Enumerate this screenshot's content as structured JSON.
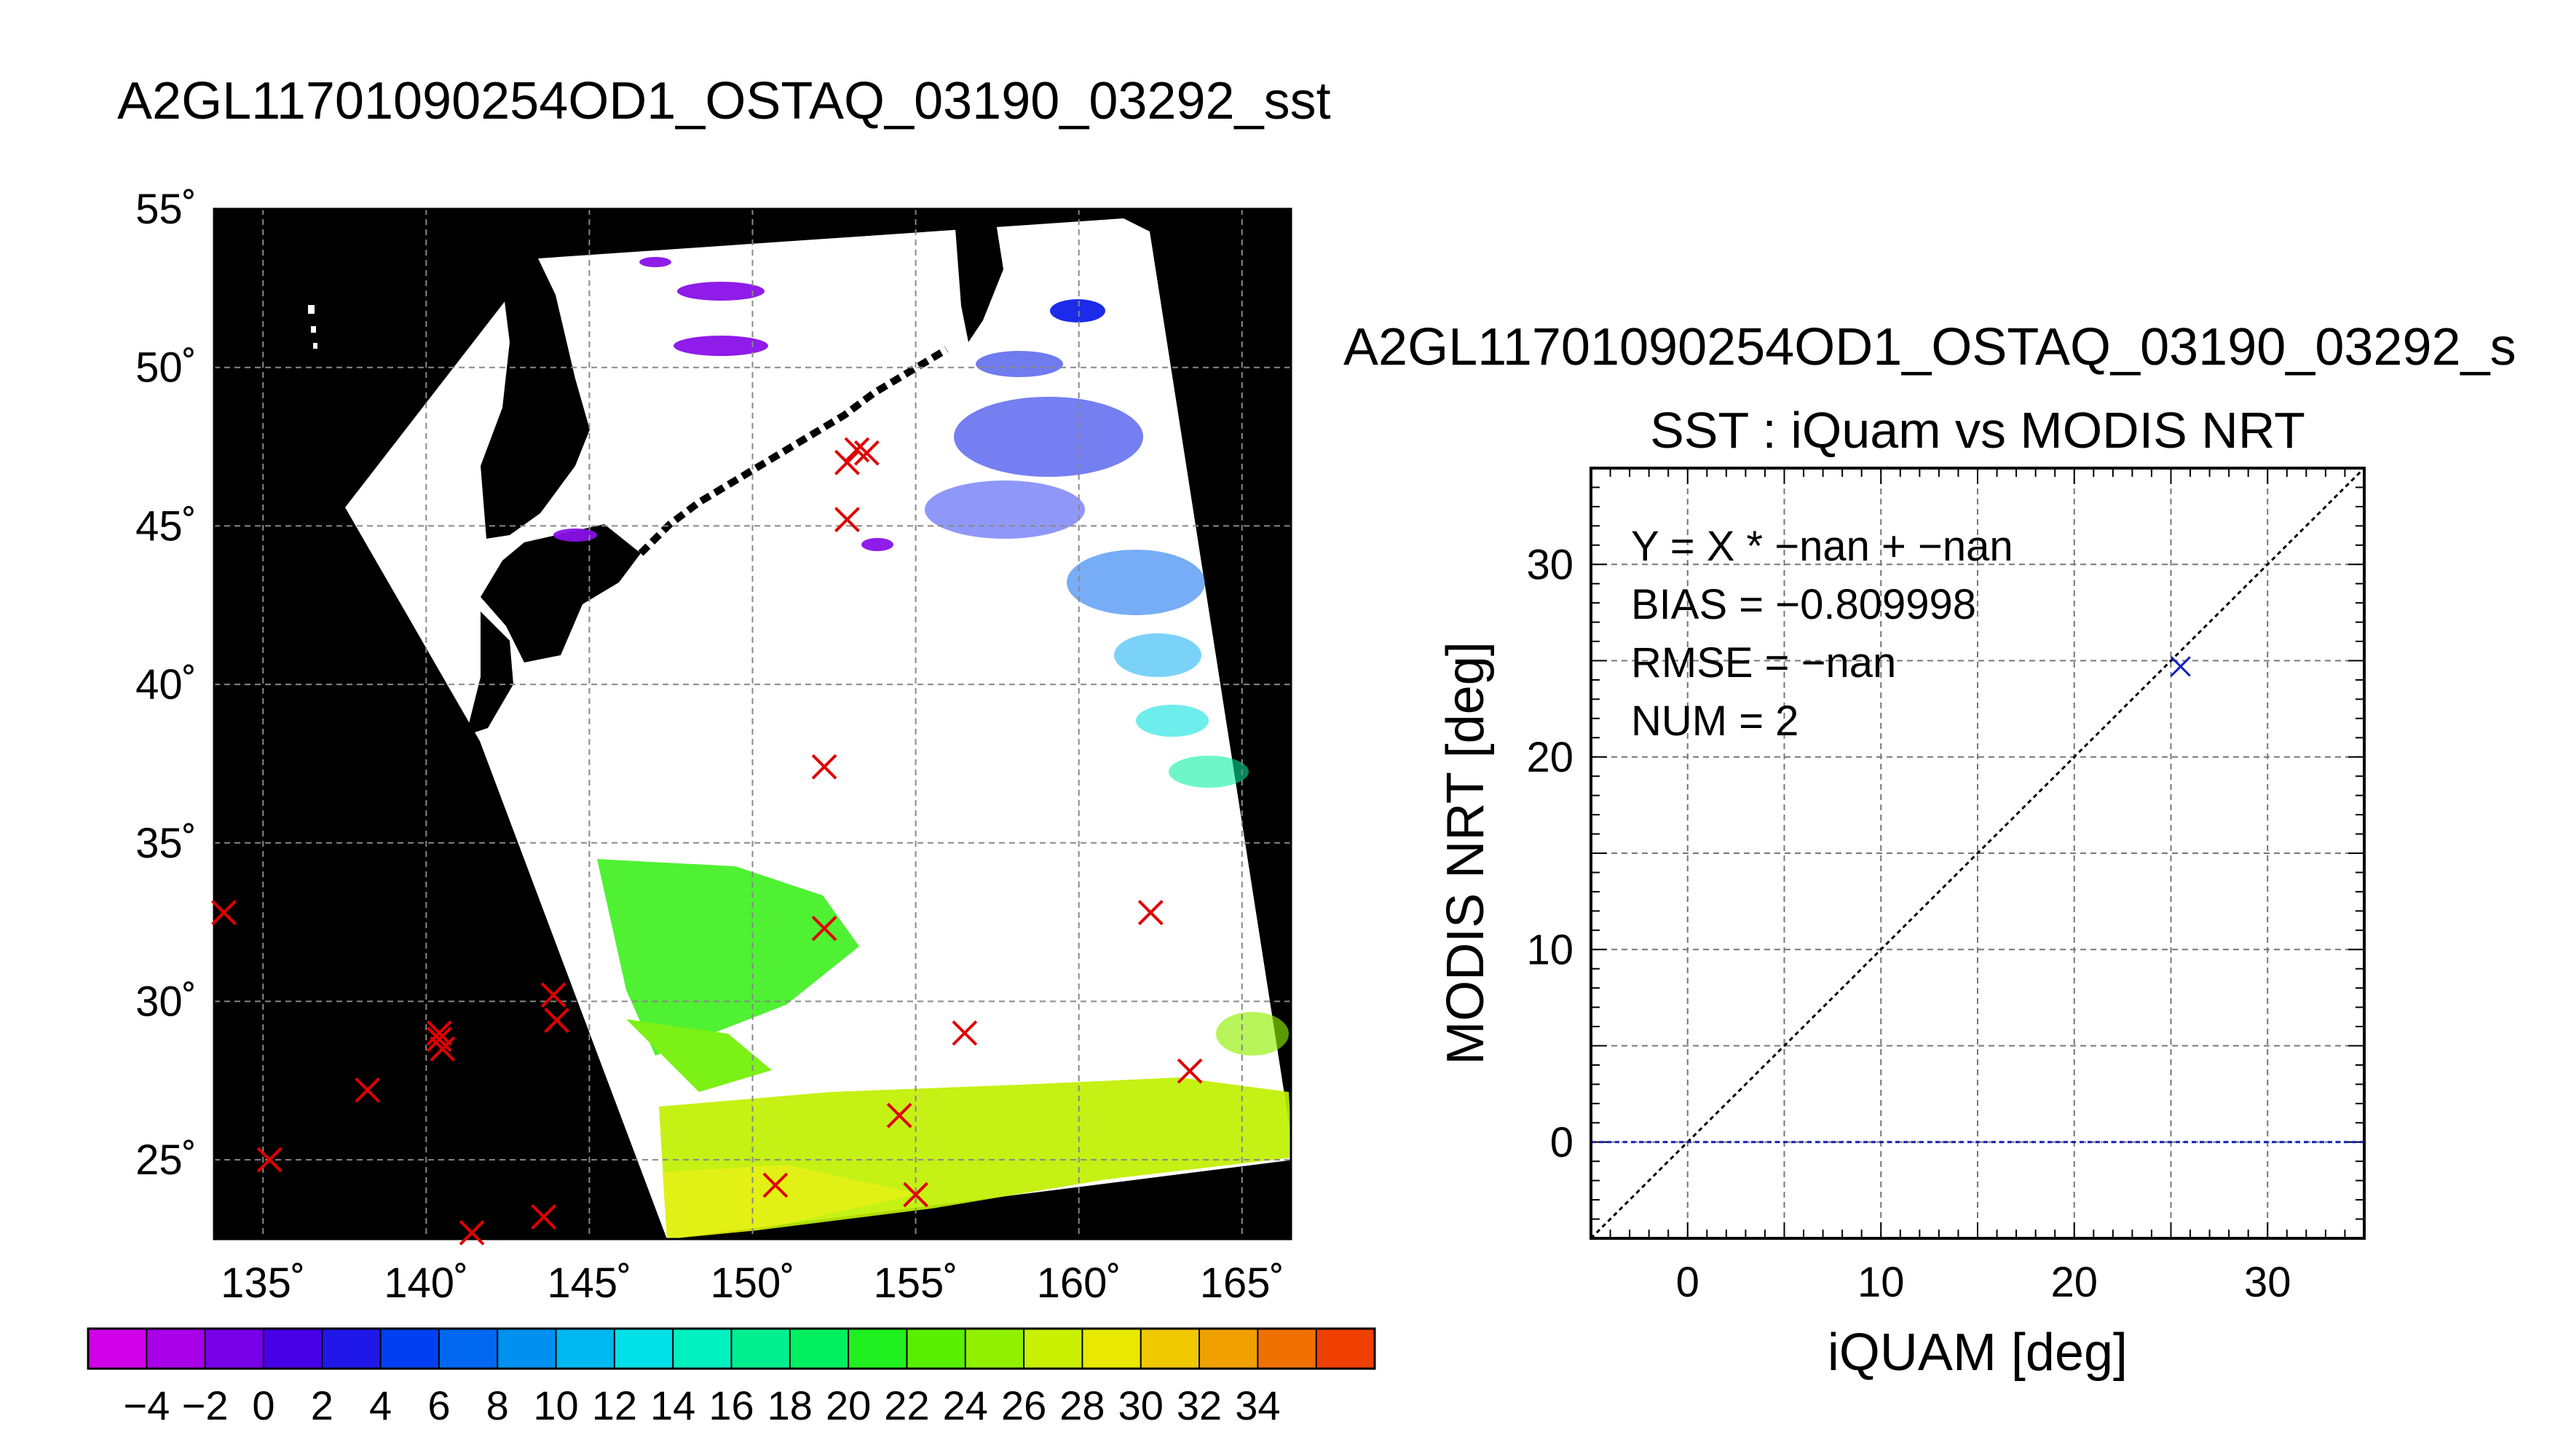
{
  "titles": {
    "main": "A2GL11701090254OD1_OSTAQ_03190_03292_sst",
    "scatter_filename": "A2GL11701090254OD1_OSTAQ_03190_03292_s"
  },
  "colors": {
    "match_marker": "#e00000",
    "scatter_marker": "#1020c0",
    "zero_line": "#1020c0",
    "land": "#000000",
    "cloud_mask": "#ffffff",
    "grid": "#888888"
  },
  "chart_data": [
    {
      "type": "map",
      "title": "A2GL11701090254OD1_OSTAQ_03190_03292_sst",
      "lon_range": [
        133.5,
        166.5
      ],
      "lat_range": [
        22.5,
        55
      ],
      "lon_ticks": [
        135,
        140,
        145,
        150,
        155,
        160,
        165
      ],
      "lat_ticks": [
        25,
        30,
        35,
        40,
        45,
        50,
        55
      ],
      "lon_tick_labels": [
        "135˚",
        "140˚",
        "145˚",
        "150˚",
        "155˚",
        "160˚",
        "165˚"
      ],
      "lat_tick_labels": [
        "25˚",
        "30˚",
        "35˚",
        "40˚",
        "45˚",
        "50˚",
        "55˚"
      ],
      "grid": true,
      "match_points": [
        {
          "lon": 133.8,
          "lat": 32.8
        },
        {
          "lon": 135.2,
          "lat": 25.0
        },
        {
          "lon": 138.2,
          "lat": 27.2
        },
        {
          "lon": 140.4,
          "lat": 29.0
        },
        {
          "lon": 140.4,
          "lat": 28.8
        },
        {
          "lon": 140.5,
          "lat": 28.5
        },
        {
          "lon": 141.4,
          "lat": 22.7
        },
        {
          "lon": 143.6,
          "lat": 23.2
        },
        {
          "lon": 143.9,
          "lat": 30.2
        },
        {
          "lon": 144.0,
          "lat": 29.4
        },
        {
          "lon": 150.7,
          "lat": 24.2
        },
        {
          "lon": 152.2,
          "lat": 37.4
        },
        {
          "lon": 152.2,
          "lat": 32.3
        },
        {
          "lon": 152.9,
          "lat": 45.2
        },
        {
          "lon": 152.9,
          "lat": 47.0
        },
        {
          "lon": 153.2,
          "lat": 47.4
        },
        {
          "lon": 153.5,
          "lat": 47.3
        },
        {
          "lon": 154.5,
          "lat": 26.4
        },
        {
          "lon": 155.0,
          "lat": 23.9
        },
        {
          "lon": 156.5,
          "lat": 29.0
        },
        {
          "lon": 162.2,
          "lat": 32.8
        },
        {
          "lon": 163.4,
          "lat": 27.8
        }
      ]
    },
    {
      "type": "colorbar",
      "tick_labels": [
        "−4",
        "−2",
        "0",
        "2",
        "4",
        "6",
        "8",
        "10",
        "12",
        "14",
        "16",
        "18",
        "20",
        "22",
        "24",
        "26",
        "28",
        "30",
        "32",
        "34"
      ],
      "colors": [
        "#d000e8",
        "#a800e8",
        "#7800e8",
        "#4800e8",
        "#2018e8",
        "#0040f0",
        "#0068f0",
        "#0090f0",
        "#00b8f0",
        "#00e0e8",
        "#00f0c0",
        "#00f090",
        "#00f060",
        "#20f020",
        "#58f000",
        "#90f000",
        "#c8f000",
        "#e8e800",
        "#f0c800",
        "#f0a000",
        "#f07000",
        "#f04000"
      ]
    },
    {
      "type": "scatter",
      "title": "SST : iQuam vs MODIS NRT",
      "xlabel": "iQUAM [deg]",
      "ylabel": "MODIS NRT [deg]",
      "xlim": [
        -5,
        35
      ],
      "ylim": [
        -5,
        35
      ],
      "xticks": [
        0,
        10,
        20,
        30
      ],
      "yticks": [
        0,
        10,
        20,
        30
      ],
      "grid": true,
      "stats": [
        "Y = X * −nan + −nan",
        "BIAS = −0.809998",
        "RMSE = −nan",
        "NUM = 2"
      ],
      "points": [
        {
          "x": 25.5,
          "y": 24.7
        }
      ],
      "reference_lines": [
        "y = x",
        "y = 0"
      ]
    }
  ]
}
